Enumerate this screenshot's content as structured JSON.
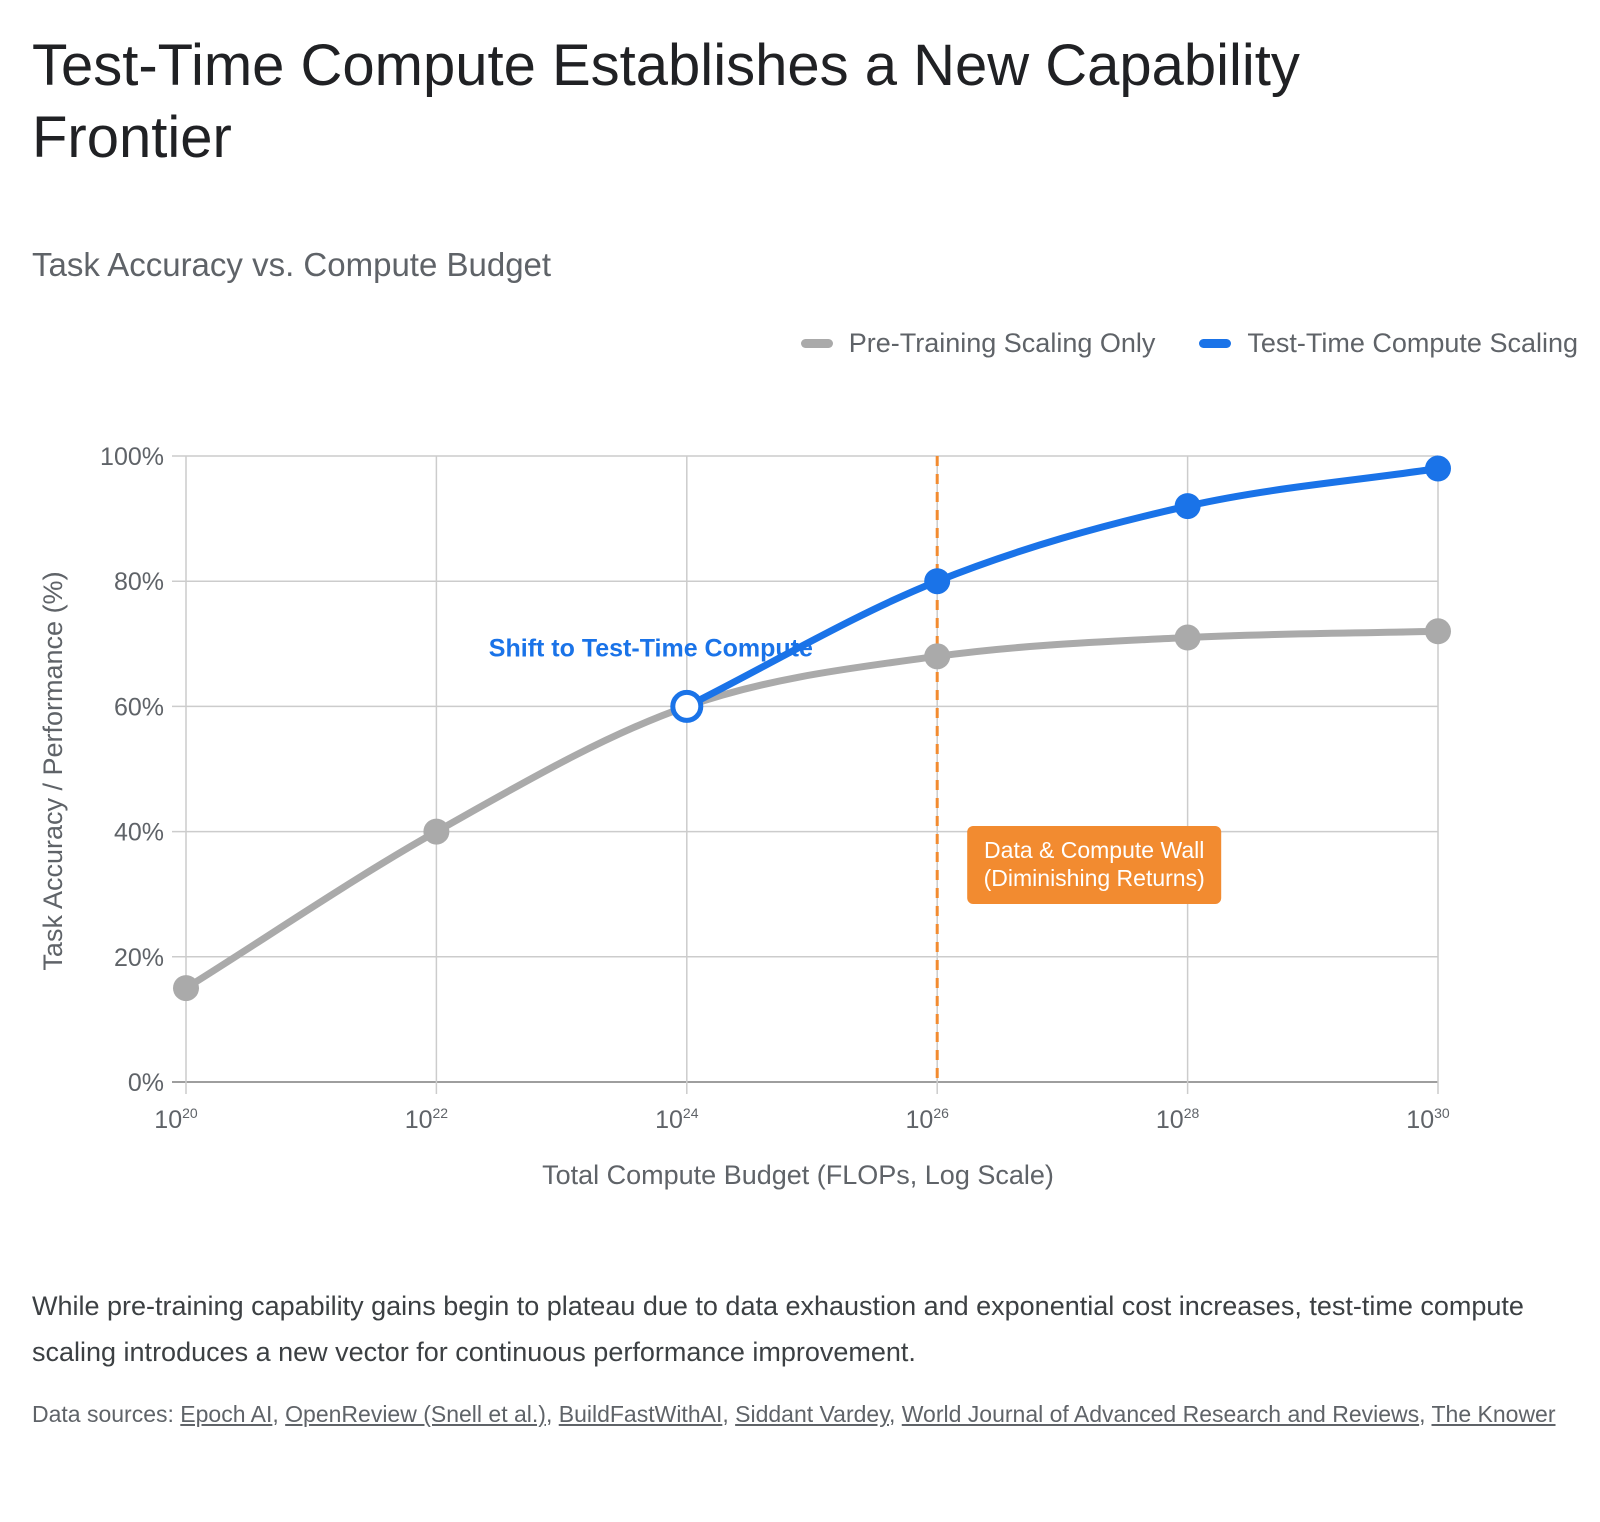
{
  "page": {
    "title": "Test-Time Compute Establishes a New Capability Frontier",
    "description": "While pre-training capability gains begin to plateau due to data exhaustion and exponential cost increases, test-time compute scaling introduces a new vector for continuous performance improvement.",
    "sources_label": "Data sources:",
    "sources": [
      "Epoch AI",
      "OpenReview (Snell et al.)",
      "BuildFastWithAI",
      "Siddant Vardey",
      "World Journal of Advanced Research and Reviews",
      "The Knower"
    ]
  },
  "chart_data": {
    "type": "line",
    "title": "Task Accuracy vs. Compute Budget",
    "xlabel": "Total Compute Budget (FLOPs, Log Scale)",
    "ylabel": "Task Accuracy / Performance (%)",
    "x_scale": "log",
    "x_ticks": [
      {
        "value": 1e+20,
        "base": "10",
        "exp": "20"
      },
      {
        "value": 1e+22,
        "base": "10",
        "exp": "22"
      },
      {
        "value": 1e+24,
        "base": "10",
        "exp": "24"
      },
      {
        "value": 1e+26,
        "base": "10",
        "exp": "26"
      },
      {
        "value": 1e+28,
        "base": "10",
        "exp": "28"
      },
      {
        "value": 1e+30,
        "base": "10",
        "exp": "30"
      }
    ],
    "y_ticks": [
      "0%",
      "20%",
      "40%",
      "60%",
      "80%",
      "100%"
    ],
    "ylim": [
      0,
      100
    ],
    "grid": true,
    "legend_position": "top-right",
    "series": [
      {
        "name": "Pre-Training Scaling Only",
        "color": "#aaaaaa",
        "points": [
          {
            "x": 1e+20,
            "y": 15
          },
          {
            "x": 1e+22,
            "y": 40
          },
          {
            "x": 1e+24,
            "y": 60
          },
          {
            "x": 1e+26,
            "y": 68
          },
          {
            "x": 1e+28,
            "y": 71
          },
          {
            "x": 1e+30,
            "y": 72
          }
        ]
      },
      {
        "name": "Test-Time Compute Scaling",
        "color": "#1a73e8",
        "points": [
          {
            "x": 1e+24,
            "y": 60
          },
          {
            "x": 1e+26,
            "y": 80
          },
          {
            "x": 1e+28,
            "y": 92
          },
          {
            "x": 1e+30,
            "y": 98
          }
        ]
      }
    ],
    "annotations": [
      {
        "text": "Shift to Test-Time Compute",
        "color": "#1a73e8",
        "anchor_x": 1e+24,
        "anchor_y": 60,
        "marker": "hollow-circle"
      },
      {
        "type": "vertical-dashed-line",
        "x": 1e+26,
        "color": "#f28b30"
      },
      {
        "text_lines": [
          "Data & Compute Wall",
          "(Diminishing Returns)"
        ],
        "color": "#f28b30",
        "x": 1e+26
      }
    ]
  }
}
